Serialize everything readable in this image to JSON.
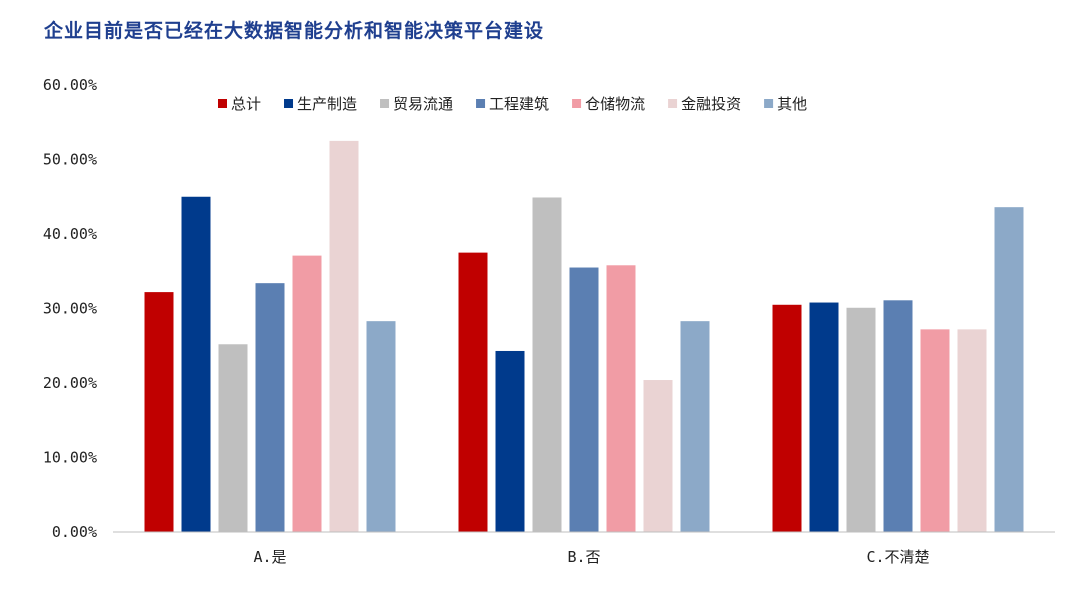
{
  "title": "企业目前是否已经在大数据智能分析和智能决策平台建设",
  "chart_data": {
    "type": "bar",
    "title": "企业目前是否已经在大数据智能分析和智能决策平台建设",
    "xlabel": "",
    "ylabel": "",
    "ylim": [
      0,
      60
    ],
    "yticks": [
      "0.00%",
      "10.00%",
      "20.00%",
      "30.00%",
      "40.00%",
      "50.00%",
      "60.00%"
    ],
    "ytick_values": [
      0,
      10,
      20,
      30,
      40,
      50,
      60
    ],
    "grid": false,
    "legend_position": "top",
    "categories": [
      "A.是",
      "B.否",
      "C.不清楚"
    ],
    "series": [
      {
        "name": "总计",
        "color": "#c00000",
        "values": [
          32.2,
          37.5,
          30.5
        ]
      },
      {
        "name": "生产制造",
        "color": "#003a8c",
        "values": [
          45.0,
          24.3,
          30.8
        ]
      },
      {
        "name": "贸易流通",
        "color": "#bfbfbf",
        "values": [
          25.2,
          44.9,
          30.1
        ]
      },
      {
        "name": "工程建筑",
        "color": "#5b7fb2",
        "values": [
          33.4,
          35.5,
          31.1
        ]
      },
      {
        "name": "仓储物流",
        "color": "#f19ca5",
        "values": [
          37.1,
          35.8,
          27.2
        ]
      },
      {
        "name": "金融投资",
        "color": "#ead3d3",
        "values": [
          52.5,
          20.4,
          27.2
        ]
      },
      {
        "name": "其他",
        "color": "#8ca9c8",
        "values": [
          28.3,
          28.3,
          43.6
        ]
      }
    ]
  }
}
